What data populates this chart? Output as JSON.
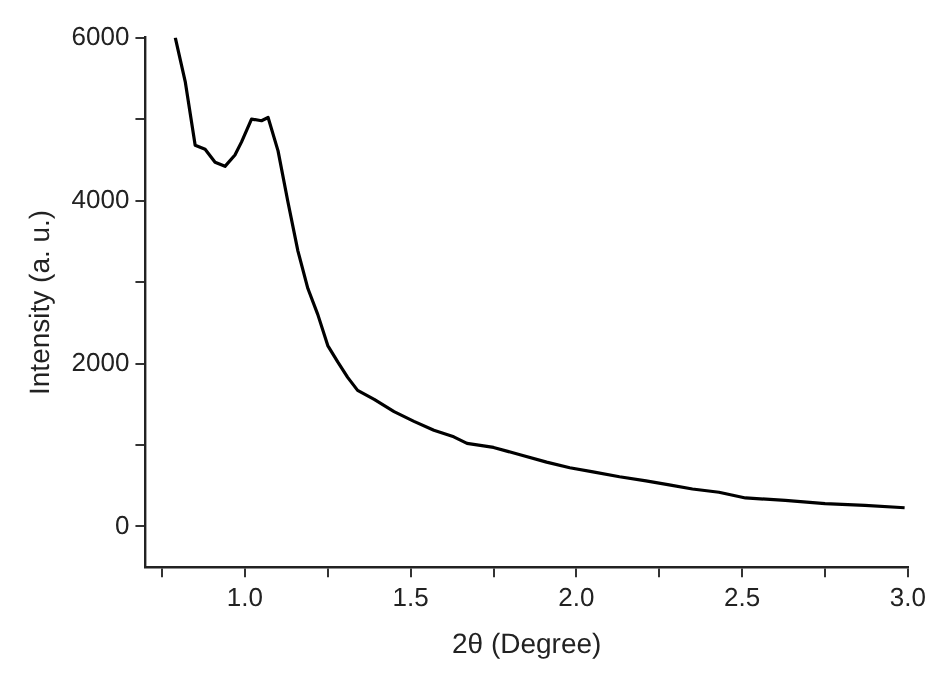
{
  "chart_data": {
    "type": "line",
    "xlabel": "2θ (Degree)",
    "ylabel": "Intensity (a. u.)",
    "grid": false,
    "legend": false,
    "marker": "none",
    "line_style": "solid",
    "x": [
      0.79,
      0.82,
      0.85,
      0.88,
      0.91,
      0.94,
      0.97,
      0.99,
      1.02,
      1.05,
      1.07,
      1.1,
      1.13,
      1.16,
      1.19,
      1.22,
      1.25,
      1.28,
      1.31,
      1.34,
      1.39,
      1.45,
      1.51,
      1.57,
      1.63,
      1.67,
      1.75,
      1.83,
      1.91,
      1.98,
      2.05,
      2.13,
      2.21,
      2.28,
      2.35,
      2.43,
      2.51,
      2.63,
      2.75,
      2.87,
      2.99
    ],
    "series": [
      {
        "color": "#000000",
        "values": [
          6000,
          5460,
          4680,
          4630,
          4470,
          4420,
          4560,
          4720,
          5000,
          4980,
          5020,
          4610,
          3980,
          3380,
          2920,
          2600,
          2220,
          2020,
          1830,
          1670,
          1560,
          1410,
          1290,
          1180,
          1100,
          1020,
          970,
          880,
          790,
          720,
          670,
          610,
          560,
          510,
          460,
          420,
          350,
          320,
          280,
          260,
          230
        ]
      }
    ],
    "xlim": [
      0.7,
      3.0
    ],
    "xticks": [
      {
        "value": 0.75,
        "label": null
      },
      {
        "value": 1,
        "label": "1.0"
      },
      {
        "value": 1.25,
        "label": null
      },
      1.5,
      {
        "value": 1.75,
        "label": null
      },
      {
        "value": 2,
        "label": "2.0"
      },
      {
        "value": 2.25,
        "label": null
      },
      2.5,
      {
        "value": 2.75,
        "label": null
      },
      {
        "value": 3,
        "label": "3.0"
      }
    ],
    "ylim": [
      -500,
      6000
    ],
    "yticks": [
      0,
      {
        "value": 1000,
        "label": null
      },
      2000,
      {
        "value": 3000,
        "label": null
      },
      4000,
      {
        "value": 5000,
        "label": null
      },
      6000
    ]
  }
}
